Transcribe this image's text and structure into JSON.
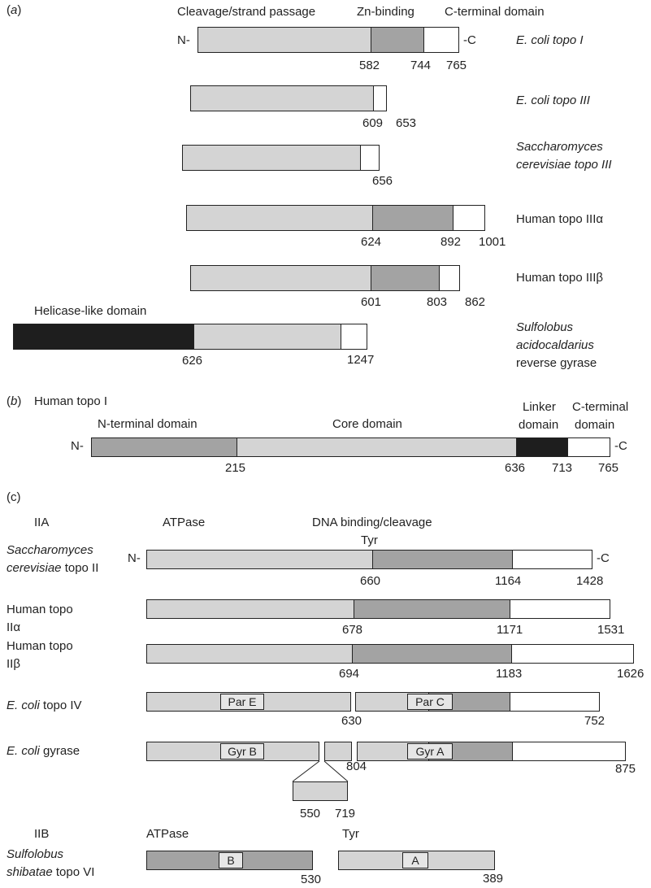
{
  "panel_a": {
    "label_a": "(",
    "label_b": "a",
    "label_c": ")",
    "headers": [
      "Cleavage/strand passage",
      "Zn-binding",
      "C-terminal domain"
    ],
    "n_term": "N-",
    "c_term": "-C",
    "proteins": [
      {
        "name": "E. coli topo I",
        "positions": [
          "582",
          "744",
          "765"
        ]
      },
      {
        "name": "E. coli topo III",
        "positions": [
          "609",
          "653"
        ]
      },
      {
        "name_line1": "Saccharomyces",
        "name_line2": "cerevisiae topo III",
        "positions": [
          "656"
        ]
      },
      {
        "name": "Human topo IIIα",
        "positions": [
          "624",
          "892",
          "1001"
        ]
      },
      {
        "name": "Human topo IIIβ",
        "positions": [
          "601",
          "803",
          "862"
        ]
      },
      {
        "name_line1": "Sulfolobus",
        "name_line2": "acidocaldarius",
        "name_line3": "reverse gyrase",
        "domain_label": "Helicase-like domain",
        "positions": [
          "626",
          "1247"
        ]
      }
    ]
  },
  "panel_b": {
    "label_a": "(",
    "label_b": "b",
    "label_c": ")",
    "title": "Human topo I",
    "domains": [
      "N-terminal domain",
      "Core domain",
      "Linker",
      "domain",
      "C-terminal",
      "domain"
    ],
    "n_term": "N-",
    "c_term": "-C",
    "positions": [
      "215",
      "636",
      "713",
      "765"
    ]
  },
  "panel_c": {
    "label": "(c)",
    "class_iia": "IIA",
    "class_iib": "IIB",
    "headers": [
      "ATPase",
      "DNA binding/cleavage"
    ],
    "tyr": "Tyr",
    "n_term": "N-",
    "c_term": "-C",
    "proteins": [
      {
        "name_line1": "Saccharomyces",
        "name_line2": "cerevisiae",
        "name_line2b": " topo II",
        "positions": [
          "660",
          "1164",
          "1428"
        ]
      },
      {
        "name_line1": "Human topo",
        "name_line2": "IIα",
        "positions": [
          "678",
          "1171",
          "1531"
        ]
      },
      {
        "name_line1": "Human topo",
        "name_line2": "IIβ",
        "positions": [
          "694",
          "1183",
          "1626"
        ]
      },
      {
        "name_a": "E. coli",
        "name_b": " topo IV",
        "subunits": [
          "Par E",
          "Par C"
        ],
        "positions": [
          "630",
          "752"
        ]
      },
      {
        "name_a": "E. coli",
        "name_b": " gyrase",
        "subunits": [
          "Gyr B",
          "Gyr A"
        ],
        "positions": [
          "804",
          "875",
          "550",
          "719"
        ]
      },
      {
        "name_line1": "Sulfolobus",
        "name_line2": "shibatae",
        "name_line2b": " topo VI",
        "header_a": "ATPase",
        "header_b": "Tyr",
        "subunits": [
          "B",
          "A"
        ],
        "positions": [
          "530",
          "389"
        ]
      }
    ]
  }
}
